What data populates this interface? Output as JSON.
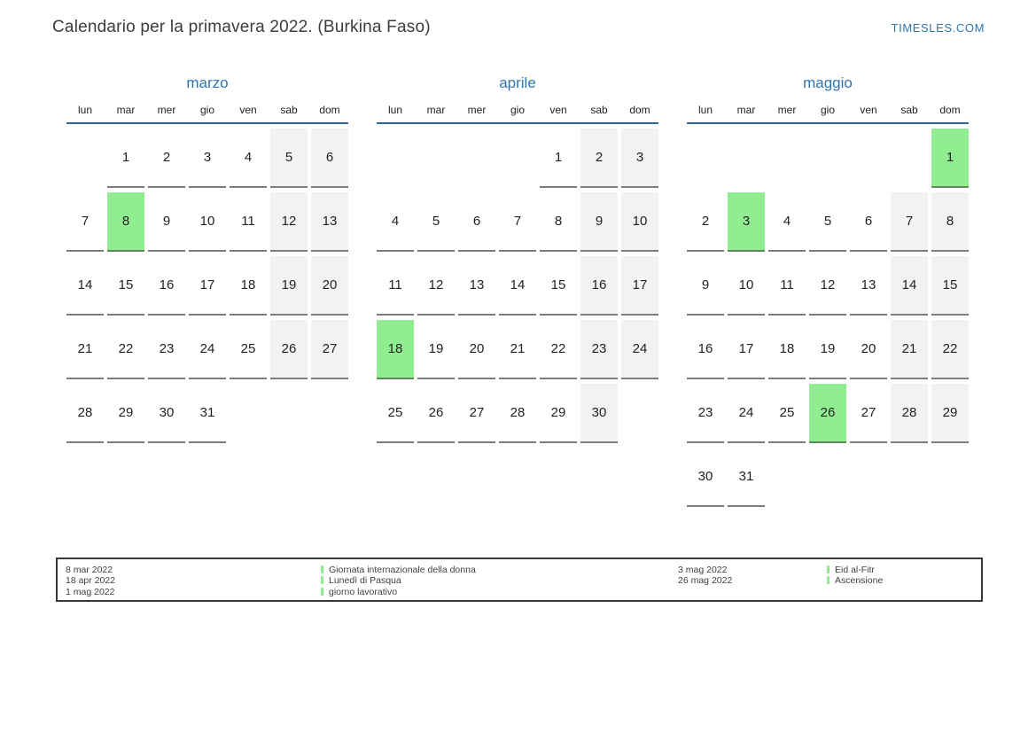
{
  "page": {
    "title": "Calendario per la primavera 2022. (Burkina Faso)",
    "site": "TIMESLES.COM"
  },
  "colors": {
    "accent_blue": "#2e75b6",
    "header_line_blue": "#2e6698",
    "holiday_green": "#90ee90",
    "weekend_gray": "#f2f2f2"
  },
  "weekdays": [
    "lun",
    "mar",
    "mer",
    "gio",
    "ven",
    "sab",
    "dom"
  ],
  "months": [
    {
      "name": "marzo",
      "weeks": [
        [
          "",
          1,
          2,
          3,
          4,
          5,
          6
        ],
        [
          7,
          8,
          9,
          10,
          11,
          12,
          13
        ],
        [
          14,
          15,
          16,
          17,
          18,
          19,
          20
        ],
        [
          21,
          22,
          23,
          24,
          25,
          26,
          27
        ],
        [
          28,
          29,
          30,
          31,
          "",
          "",
          ""
        ]
      ],
      "holidays": [
        8
      ]
    },
    {
      "name": "aprile",
      "weeks": [
        [
          "",
          "",
          "",
          "",
          1,
          2,
          3
        ],
        [
          4,
          5,
          6,
          7,
          8,
          9,
          10
        ],
        [
          11,
          12,
          13,
          14,
          15,
          16,
          17
        ],
        [
          18,
          19,
          20,
          21,
          22,
          23,
          24
        ],
        [
          25,
          26,
          27,
          28,
          29,
          30,
          ""
        ]
      ],
      "holidays": [
        18
      ]
    },
    {
      "name": "maggio",
      "weeks": [
        [
          "",
          "",
          "",
          "",
          "",
          "",
          1
        ],
        [
          2,
          3,
          4,
          5,
          6,
          7,
          8
        ],
        [
          9,
          10,
          11,
          12,
          13,
          14,
          15
        ],
        [
          16,
          17,
          18,
          19,
          20,
          21,
          22
        ],
        [
          23,
          24,
          25,
          26,
          27,
          28,
          29
        ],
        [
          30,
          31,
          "",
          "",
          "",
          "",
          ""
        ]
      ],
      "holidays": [
        1,
        3,
        26
      ]
    }
  ],
  "legend": {
    "groups": [
      {
        "dates": [
          "8 mar 2022",
          "18 apr 2022",
          "1 mag 2022"
        ],
        "names": [
          "Giornata internazionale della donna",
          "Lunedì di Pasqua",
          "giorno lavorativo"
        ]
      },
      {
        "dates": [
          "3 mag 2022",
          "26 mag 2022"
        ],
        "names": [
          "Eid al-Fitr",
          "Ascensione"
        ]
      }
    ]
  }
}
